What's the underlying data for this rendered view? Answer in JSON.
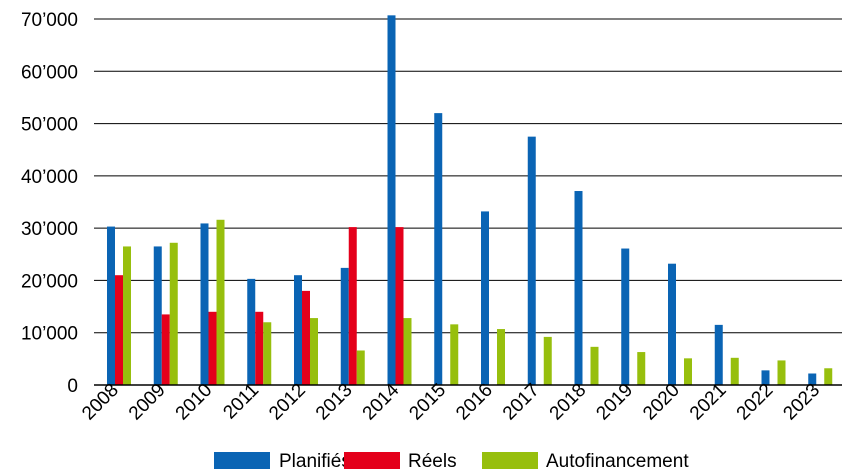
{
  "chart_data": {
    "type": "bar",
    "title": "",
    "xlabel": "",
    "ylabel": "",
    "categories": [
      "2008",
      "2009",
      "2010",
      "2011",
      "2012",
      "2013",
      "2014",
      "2015",
      "2016",
      "2017",
      "2018",
      "2019",
      "2020",
      "2021",
      "2022",
      "2023"
    ],
    "ylim": [
      0,
      70000
    ],
    "yticks": [
      0,
      10000,
      20000,
      30000,
      40000,
      50000,
      60000,
      70000
    ],
    "ytick_labels": [
      "0",
      "10’000",
      "20’000",
      "30’000",
      "40’000",
      "50’000",
      "60’000",
      "70’000"
    ],
    "grid": true,
    "legend_position": "bottom",
    "series": [
      {
        "name": "Planifiés",
        "color": "#0a64b4",
        "values": [
          30300,
          26500,
          30900,
          20300,
          21000,
          22400,
          70700,
          52000,
          33200,
          47500,
          37100,
          26100,
          23200,
          11500,
          2800,
          2200
        ]
      },
      {
        "name": "Réels",
        "color": "#e4001b",
        "values": [
          21000,
          13500,
          14000,
          14000,
          18000,
          30200,
          30200,
          0,
          0,
          0,
          0,
          0,
          0,
          0,
          0,
          0
        ]
      },
      {
        "name": "Autofinancement",
        "color": "#97bf0d",
        "values": [
          26500,
          27200,
          31600,
          12000,
          12800,
          6600,
          12800,
          11600,
          10700,
          9200,
          7300,
          6300,
          5100,
          5200,
          4700,
          3200
        ]
      }
    ]
  }
}
